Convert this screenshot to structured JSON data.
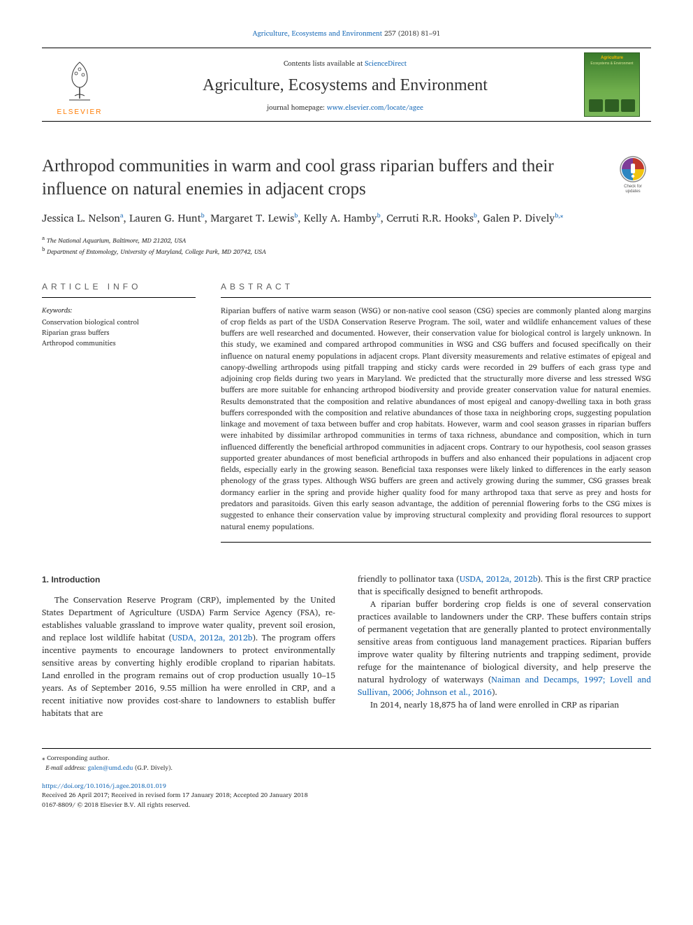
{
  "running_head": {
    "journal": "Agriculture, Ecosystems and Environment",
    "citation": "257 (2018) 81–91"
  },
  "masthead": {
    "avail_text": "Contents lists available at ",
    "avail_link": "ScienceDirect",
    "journal_title": "Agriculture, Ecosystems and Environment",
    "homepage_text": "journal homepage: ",
    "homepage_link": "www.elsevier.com/locate/agee",
    "publisher_wordmark": "ELSEVIER",
    "cover": {
      "line1": "Agriculture",
      "line2": "Ecosystems & Environment"
    }
  },
  "check_updates": {
    "line1": "Check for",
    "line2": "updates"
  },
  "title": "Arthropod communities in warm and cool grass riparian buffers and their influence on natural enemies in adjacent crops",
  "authors": [
    {
      "name": "Jessica L. Nelson",
      "aff": "a"
    },
    {
      "name": "Lauren G. Hunt",
      "aff": "b"
    },
    {
      "name": "Margaret T. Lewis",
      "aff": "b"
    },
    {
      "name": "Kelly A. Hamby",
      "aff": "b"
    },
    {
      "name": "Cerruti R.R. Hooks",
      "aff": "b"
    },
    {
      "name": "Galen P. Dively",
      "aff": "b",
      "corr": true
    }
  ],
  "affiliations": {
    "a": "The National Aquarium, Baltimore, MD 21202, USA",
    "b": "Department of Entomology, University of Maryland, College Park, MD 20742, USA"
  },
  "article_info": {
    "heading": "ARTICLE INFO",
    "keywords_label": "Keywords:",
    "keywords": [
      "Conservation biological control",
      "Riparian grass buffers",
      "Arthropod communities"
    ]
  },
  "abstract": {
    "heading": "ABSTRACT",
    "text": "Riparian buffers of native warm season (WSG) or non-native cool season (CSG) species are commonly planted along margins of crop fields as part of the USDA Conservation Reserve Program. The soil, water and wildlife enhancement values of these buffers are well researched and documented. However, their conservation value for biological control is largely unknown. In this study, we examined and compared arthropod communities in WSG and CSG buffers and focused specifically on their influence on natural enemy populations in adjacent crops. Plant diversity measurements and relative estimates of epigeal and canopy-dwelling arthropods using pitfall trapping and sticky cards were recorded in 29 buffers of each grass type and adjoining crop fields during two years in Maryland. We predicted that the structurally more diverse and less stressed WSG buffers are more suitable for enhancing arthropod biodiversity and provide greater conservation value for natural enemies. Results demonstrated that the composition and relative abundances of most epigeal and canopy-dwelling taxa in both grass buffers corresponded with the composition and relative abundances of those taxa in neighboring crops, suggesting population linkage and movement of taxa between buffer and crop habitats. However, warm and cool season grasses in riparian buffers were inhabited by dissimilar arthropod communities in terms of taxa richness, abundance and composition, which in turn influenced differently the beneficial arthropod communities in adjacent crops. Contrary to our hypothesis, cool season grasses supported greater abundances of most beneficial arthropods in buffers and also enhanced their populations in adjacent crop fields, especially early in the growing season. Beneficial taxa responses were likely linked to differences in the early season phenology of the grass types. Although WSG buffers are green and actively growing during the summer, CSG grasses break dormancy earlier in the spring and provide higher quality food for many arthropod taxa that serve as prey and hosts for predators and parasitoids. Given this early season advantage, the addition of perennial flowering forbs to the CSG mixes is suggested to enhance their conservation value by improving structural complexity and providing floral resources to support natural enemy populations."
  },
  "body": {
    "section_heading": "1. Introduction",
    "left_paragraph_pre": "The Conservation Reserve Program (CRP), implemented by the United States Department of Agriculture (USDA) Farm Service Agency (FSA), re-establishes valuable grassland to improve water quality, prevent soil erosion, and replace lost wildlife habitat (",
    "left_ref1": "USDA, 2012a, 2012b",
    "left_paragraph_post": "). The program offers incentive payments to encourage landowners to protect environmentally sensitive areas by converting highly erodible cropland to riparian habitats. Land enrolled in the program remains out of crop production usually 10–15 years. As of September 2016, 9.55 million ha were enrolled in CRP, and a recent initiative now provides cost-share to landowners to establish buffer habitats that are",
    "right_para1_pre": "friendly to pollinator taxa (",
    "right_para1_ref": "USDA, 2012a, 2012b",
    "right_para1_post": "). This is the first CRP practice that is specifically designed to benefit arthropods.",
    "right_para2_pre": "A riparian buffer bordering crop fields is one of several conservation practices available to landowners under the CRP. These buffers contain strips of permanent vegetation that are generally planted to protect environmentally sensitive areas from contiguous land management practices. Riparian buffers improve water quality by filtering nutrients and trapping sediment, provide refuge for the maintenance of biological diversity, and help preserve the natural hydrology of waterways (",
    "right_para2_refs": "Naiman and Decamps, 1997; Lovell and Sullivan, 2006; Johnson et al., 2016",
    "right_para2_post": ").",
    "right_para3": "In 2014, nearly 18,875 ha of land were enrolled in CRP as riparian"
  },
  "footnotes": {
    "corr_label": "Corresponding author.",
    "email_label": "E-mail address:",
    "email": "galen@umd.edu",
    "email_person": "(G.P. Dively)."
  },
  "doi_block": {
    "doi": "https://doi.org/10.1016/j.agee.2018.01.019",
    "history": "Received 26 April 2017; Received in revised form 17 January 2018; Accepted 20 January 2018",
    "issn_copyright": "0167-8809/ © 2018 Elsevier B.V. All rights reserved."
  },
  "colors": {
    "link": "#1a6bb8",
    "elsevier_orange": "#ff7a00",
    "cover_green_dark": "#2e5e22",
    "cover_green": "#3a7a2b"
  }
}
